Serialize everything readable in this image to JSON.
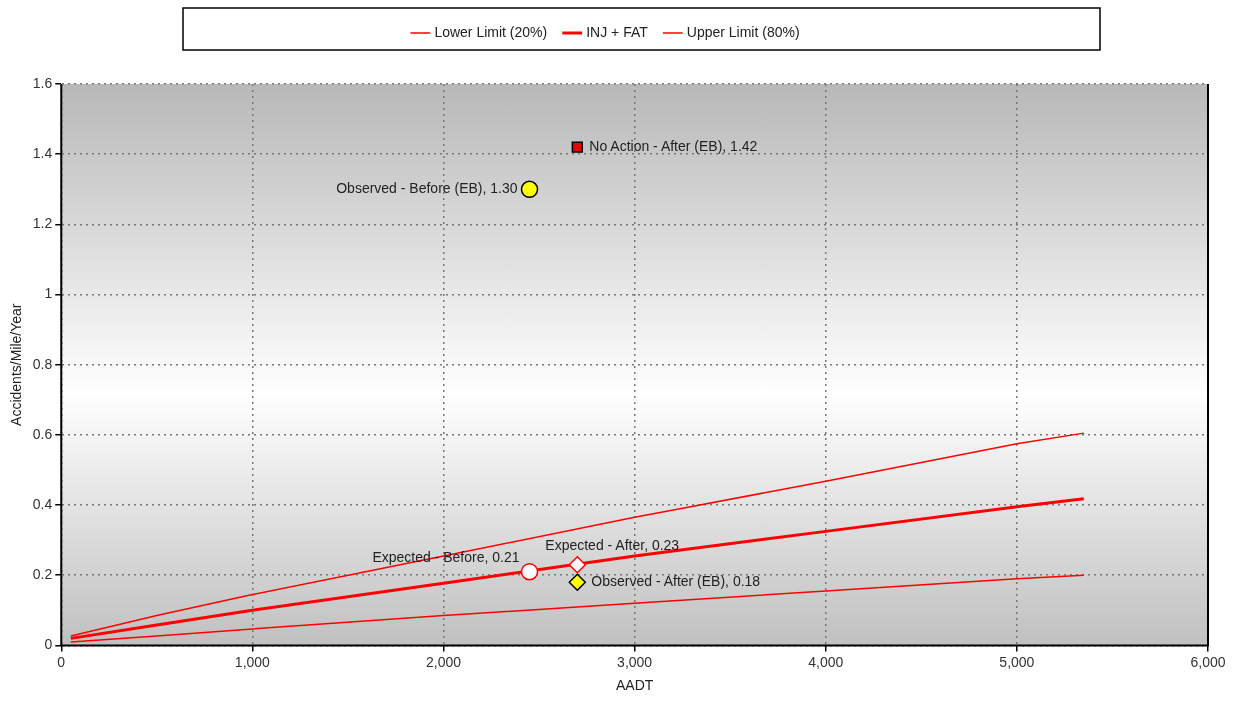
{
  "chart_data": {
    "type": "line",
    "xlabel": "AADT",
    "ylabel": "Accidents/Mile/Year",
    "legend": "top",
    "grid": true,
    "marker": "none",
    "line_style": "solid",
    "xlim": [
      0,
      6000
    ],
    "xticks": [
      0,
      {
        "value": 1000,
        "label": "1,000"
      },
      {
        "value": 2000,
        "label": "2,000"
      },
      {
        "value": 3000,
        "label": "3,000"
      },
      {
        "value": 4000,
        "label": "4,000"
      },
      {
        "value": 5000,
        "label": "5,000"
      },
      {
        "value": 6000,
        "label": "6,000"
      }
    ],
    "ylim": [
      0,
      1.6
    ],
    "yticks": [
      0,
      0.2,
      0.4,
      0.6,
      0.8,
      1,
      1.2,
      1.4,
      1.6
    ],
    "series": [
      {
        "name": "Lower Limit (20%)",
        "color": "#ff0000",
        "x": [
          50,
          500,
          1000,
          2000,
          3000,
          4000,
          5000,
          5350
        ],
        "values": [
          0.01,
          0.027,
          0.047,
          0.085,
          0.12,
          0.155,
          0.19,
          0.2
        ]
      },
      {
        "name": "INJ + FAT",
        "color": "#ff0000",
        "x": [
          50,
          500,
          1000,
          2000,
          3000,
          4000,
          5000,
          5350
        ],
        "values": [
          0.02,
          0.058,
          0.1,
          0.177,
          0.255,
          0.325,
          0.395,
          0.418
        ]
      },
      {
        "name": "Upper Limit (80%)",
        "color": "#ff0000",
        "x": [
          50,
          500,
          1000,
          2000,
          3000,
          4000,
          5000,
          5350
        ],
        "values": [
          0.027,
          0.085,
          0.145,
          0.255,
          0.365,
          0.468,
          0.575,
          0.605
        ]
      },
      {
        "type": "scatter",
        "marker": "circle",
        "color": "#ffff00",
        "x": [
          2450
        ],
        "values": [
          1.3
        ]
      },
      {
        "type": "scatter",
        "marker": "square",
        "color": "#ee0000",
        "x": [
          2700
        ],
        "values": [
          1.42
        ]
      },
      {
        "type": "scatter",
        "marker": "circle",
        "color": "#ffffff",
        "x": [
          2450
        ],
        "values": [
          0.21
        ]
      },
      {
        "type": "scatter",
        "marker": "diamond",
        "color": "#ffffff",
        "x": [
          2700
        ],
        "values": [
          0.23
        ]
      },
      {
        "type": "scatter",
        "marker": "diamond",
        "color": "#ffff00",
        "x": [
          2700
        ],
        "values": [
          0.18
        ]
      }
    ],
    "annotations": [
      "Observed - Before (EB), 1.30",
      "No Action - After (EB), 1.42",
      "Expected - Before, 0.21",
      "Expected - After, 0.23",
      "Observed - After (EB), 0.18"
    ]
  }
}
